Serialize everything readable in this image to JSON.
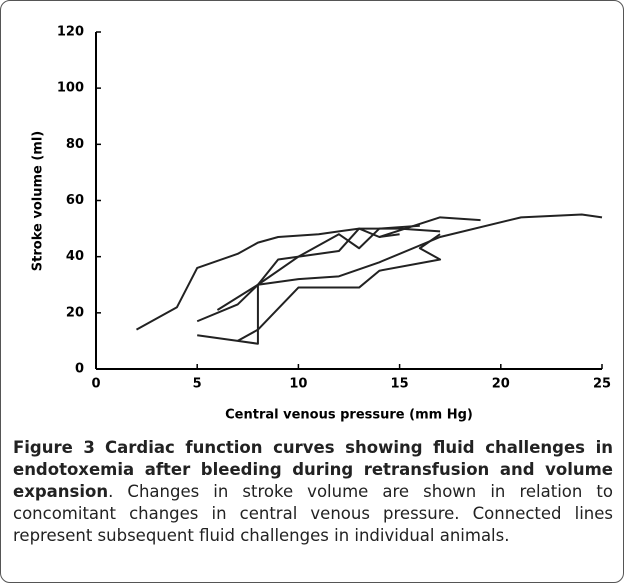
{
  "chart_data": {
    "type": "line",
    "x_label": "Central venous pressure (mm Hg)",
    "y_label": "Stroke volume (ml)",
    "xlim": [
      0,
      25
    ],
    "xticks": [
      0,
      5,
      10,
      15,
      20,
      25
    ],
    "ylim": [
      0,
      120
    ],
    "yticks": [
      0,
      20,
      40,
      60,
      80,
      100,
      120
    ],
    "series": [
      {
        "color": "#222222",
        "x": [
          2,
          4,
          5,
          7,
          8,
          9,
          11,
          12,
          13,
          15,
          17
        ],
        "values": [
          14,
          22,
          36,
          41,
          45,
          47,
          48,
          49,
          50,
          50,
          49
        ]
      },
      {
        "color": "#222222",
        "x": [
          5,
          7,
          8,
          9,
          12,
          13,
          14,
          15
        ],
        "values": [
          17,
          23,
          30,
          39,
          42,
          50,
          47,
          48
        ]
      },
      {
        "color": "#222222",
        "x": [
          6,
          8,
          10,
          12,
          14,
          17,
          21,
          24,
          25
        ],
        "values": [
          21,
          30,
          32,
          33,
          38,
          47,
          54,
          55,
          54
        ]
      },
      {
        "color": "#222222",
        "x": [
          5,
          7,
          8,
          8,
          10,
          12,
          13,
          14,
          16
        ],
        "values": [
          12,
          10,
          9,
          30,
          40,
          48,
          43,
          50,
          51
        ]
      },
      {
        "color": "#222222",
        "x": [
          7,
          8,
          10,
          10,
          13,
          14,
          17,
          16,
          17
        ],
        "values": [
          10,
          14,
          29,
          29,
          29,
          35,
          39,
          43,
          48
        ]
      },
      {
        "color": "#222222",
        "x": [
          14,
          17,
          19
        ],
        "values": [
          47,
          54,
          53
        ]
      }
    ]
  },
  "caption": {
    "label": "Figure 3",
    "title": "Cardiac function curves showing fluid challenges in endotoxemia after bleeding during retransfusion and volume expansion",
    "text": ". Changes in stroke volume are shown in relation to concomitant changes in central venous pressure. Connected lines represent subsequent fluid challenges in individual animals."
  }
}
